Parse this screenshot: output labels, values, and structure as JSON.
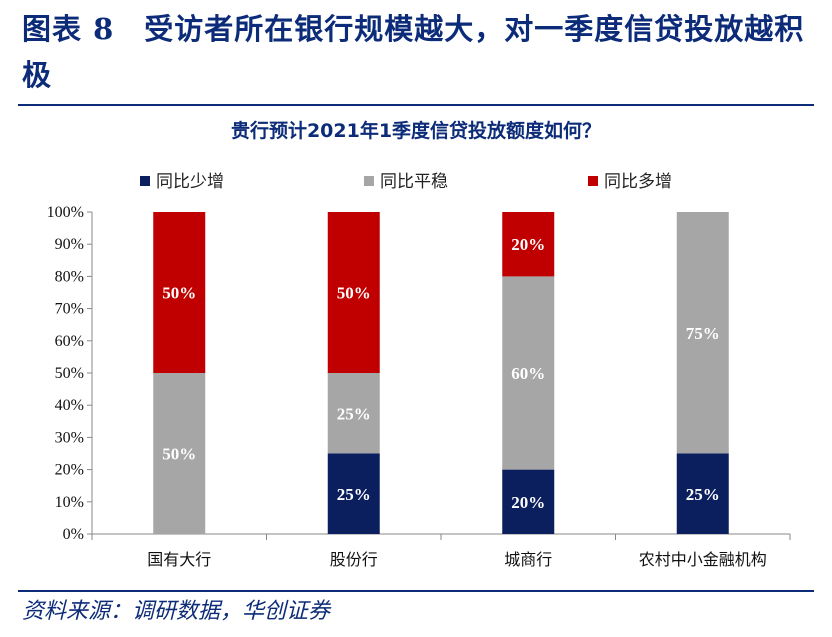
{
  "figure": {
    "title": "图表 8　受访者所在银行规模越大，对一季度信贷投放越积极",
    "source": "资料来源：调研数据，华创证券"
  },
  "colors": {
    "brand": "#0c2b78",
    "series_decrease": "#0b1f5e",
    "series_flat": "#a6a6a6",
    "series_increase": "#c00000",
    "axis": "#888888"
  },
  "chart_data": {
    "type": "bar",
    "stacked": true,
    "title": "贵行预计2021年1季度信贷投放额度如何？",
    "categories": [
      "国有大行",
      "股份行",
      "城商行",
      "农村中小金融机构"
    ],
    "series": [
      {
        "name": "同比少增",
        "values": [
          0,
          25,
          20,
          25
        ],
        "labels": [
          "",
          "25%",
          "20%",
          "25%"
        ]
      },
      {
        "name": "同比平稳",
        "values": [
          50,
          25,
          60,
          75
        ],
        "labels": [
          "50%",
          "25%",
          "60%",
          "75%"
        ]
      },
      {
        "name": "同比多增",
        "values": [
          50,
          50,
          20,
          0
        ],
        "labels": [
          "50%",
          "50%",
          "20%",
          ""
        ]
      }
    ],
    "ylim": [
      0,
      100
    ],
    "yticks": [
      "0%",
      "10%",
      "20%",
      "30%",
      "40%",
      "50%",
      "60%",
      "70%",
      "80%",
      "90%",
      "100%"
    ],
    "legend_position": "top",
    "grid": false
  }
}
